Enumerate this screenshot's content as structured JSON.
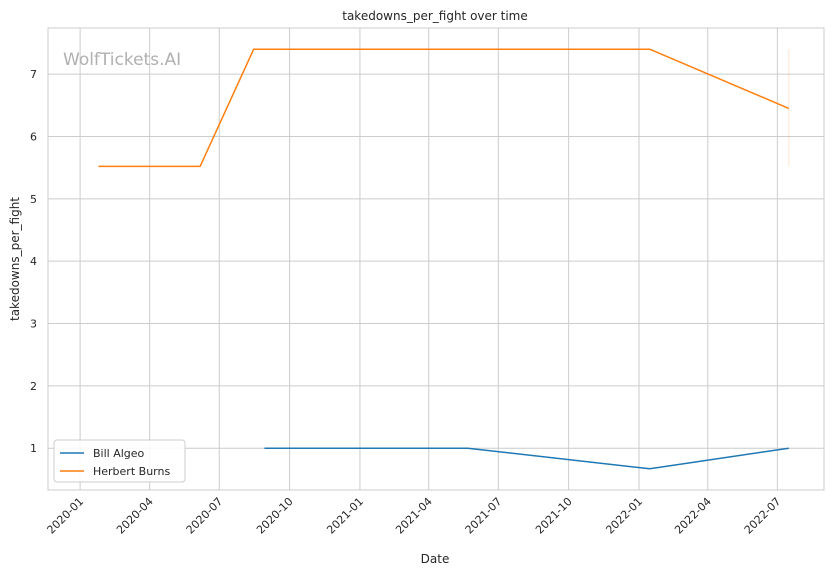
{
  "chart_data": {
    "type": "line",
    "title": "takedowns_per_fight over time",
    "xlabel": "Date",
    "ylabel": "takedowns_per_fight",
    "watermark": "WolfTickets.AI",
    "grid": true,
    "legend_position": "lower-left",
    "xlim": [
      "2019-11-20",
      "2022-08-31"
    ],
    "ylim": [
      0.33,
      7.74
    ],
    "x_ticks": [
      "2020-01",
      "2020-04",
      "2020-07",
      "2020-10",
      "2021-01",
      "2021-04",
      "2021-07",
      "2021-10",
      "2022-01",
      "2022-04",
      "2022-07"
    ],
    "y_ticks": [
      1,
      2,
      3,
      4,
      5,
      6,
      7
    ],
    "series": [
      {
        "name": "Bill Algeo",
        "color": "#1f77b4",
        "points": [
          {
            "x": "2020-08-29",
            "y": 1.0
          },
          {
            "x": "2021-05-22",
            "y": 1.0
          },
          {
            "x": "2022-01-15",
            "y": 0.67
          },
          {
            "x": "2022-07-16",
            "y": 1.0
          }
        ]
      },
      {
        "name": "Herbert Burns",
        "color": "#ff7f0e",
        "points": [
          {
            "x": "2020-01-25",
            "y": 5.52
          },
          {
            "x": "2020-06-06",
            "y": 5.52
          },
          {
            "x": "2020-08-15",
            "y": 7.4
          },
          {
            "x": "2022-01-15",
            "y": 7.4
          },
          {
            "x": "2022-07-16",
            "y": 6.45
          }
        ],
        "range_band": {
          "x": "2022-07-16",
          "y_min": 5.52,
          "y_max": 7.4
        }
      }
    ]
  }
}
